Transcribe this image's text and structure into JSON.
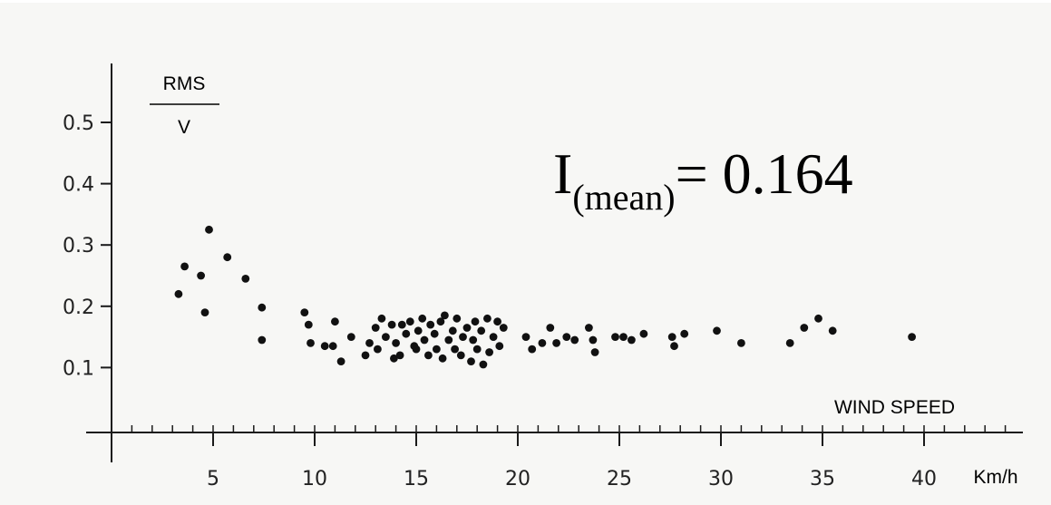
{
  "chart_data": {
    "type": "scatter",
    "title": "",
    "ylabel_numerator": "RMS",
    "ylabel_denominator": "V",
    "xlabel": "WIND SPEED",
    "xunit": "Km/h",
    "annotation": {
      "main": "I",
      "sub": "(mean)",
      "rest": "= 0.164"
    },
    "xlim": [
      0,
      44
    ],
    "ylim": [
      0,
      0.55
    ],
    "xticks": [
      5,
      10,
      15,
      20,
      25,
      30,
      35,
      40
    ],
    "yticks": [
      0.1,
      0.2,
      0.3,
      0.4,
      0.5
    ],
    "ytick_labels": [
      "0.1",
      "0.2",
      "0.3",
      "0.4",
      "0.5"
    ],
    "grid": false,
    "legend": "none",
    "point_color": "#111111",
    "points": [
      [
        3.3,
        0.22
      ],
      [
        3.6,
        0.265
      ],
      [
        4.4,
        0.25
      ],
      [
        4.6,
        0.19
      ],
      [
        4.8,
        0.325
      ],
      [
        5.7,
        0.28
      ],
      [
        6.6,
        0.245
      ],
      [
        7.4,
        0.198
      ],
      [
        7.4,
        0.145
      ],
      [
        9.5,
        0.19
      ],
      [
        9.7,
        0.17
      ],
      [
        9.8,
        0.14
      ],
      [
        10.5,
        0.135
      ],
      [
        10.9,
        0.135
      ],
      [
        11.0,
        0.175
      ],
      [
        11.3,
        0.11
      ],
      [
        11.8,
        0.15
      ],
      [
        12.5,
        0.12
      ],
      [
        12.7,
        0.14
      ],
      [
        13.0,
        0.165
      ],
      [
        13.1,
        0.13
      ],
      [
        13.3,
        0.18
      ],
      [
        13.5,
        0.15
      ],
      [
        13.8,
        0.17
      ],
      [
        13.9,
        0.115
      ],
      [
        14.0,
        0.14
      ],
      [
        14.2,
        0.12
      ],
      [
        14.3,
        0.17
      ],
      [
        14.5,
        0.155
      ],
      [
        14.7,
        0.175
      ],
      [
        14.9,
        0.135
      ],
      [
        15.0,
        0.13
      ],
      [
        15.1,
        0.16
      ],
      [
        15.3,
        0.18
      ],
      [
        15.4,
        0.145
      ],
      [
        15.6,
        0.12
      ],
      [
        15.7,
        0.17
      ],
      [
        15.9,
        0.155
      ],
      [
        16.0,
        0.13
      ],
      [
        16.2,
        0.175
      ],
      [
        16.3,
        0.115
      ],
      [
        16.4,
        0.185
      ],
      [
        16.6,
        0.145
      ],
      [
        16.8,
        0.16
      ],
      [
        16.9,
        0.13
      ],
      [
        17.0,
        0.18
      ],
      [
        17.2,
        0.12
      ],
      [
        17.3,
        0.15
      ],
      [
        17.5,
        0.165
      ],
      [
        17.7,
        0.11
      ],
      [
        17.8,
        0.145
      ],
      [
        17.9,
        0.175
      ],
      [
        18.0,
        0.13
      ],
      [
        18.2,
        0.16
      ],
      [
        18.3,
        0.105
      ],
      [
        18.5,
        0.18
      ],
      [
        18.6,
        0.125
      ],
      [
        18.8,
        0.15
      ],
      [
        19.0,
        0.175
      ],
      [
        19.1,
        0.135
      ],
      [
        19.3,
        0.165
      ],
      [
        20.4,
        0.15
      ],
      [
        20.7,
        0.13
      ],
      [
        21.2,
        0.14
      ],
      [
        21.6,
        0.165
      ],
      [
        21.9,
        0.14
      ],
      [
        22.4,
        0.15
      ],
      [
        22.8,
        0.145
      ],
      [
        23.5,
        0.165
      ],
      [
        23.8,
        0.125
      ],
      [
        23.7,
        0.145
      ],
      [
        24.8,
        0.15
      ],
      [
        25.2,
        0.15
      ],
      [
        25.6,
        0.145
      ],
      [
        26.2,
        0.155
      ],
      [
        27.6,
        0.15
      ],
      [
        27.7,
        0.135
      ],
      [
        28.2,
        0.155
      ],
      [
        29.8,
        0.16
      ],
      [
        31.0,
        0.14
      ],
      [
        33.4,
        0.14
      ],
      [
        34.1,
        0.165
      ],
      [
        34.8,
        0.18
      ],
      [
        35.5,
        0.16
      ],
      [
        39.4,
        0.15
      ]
    ]
  }
}
